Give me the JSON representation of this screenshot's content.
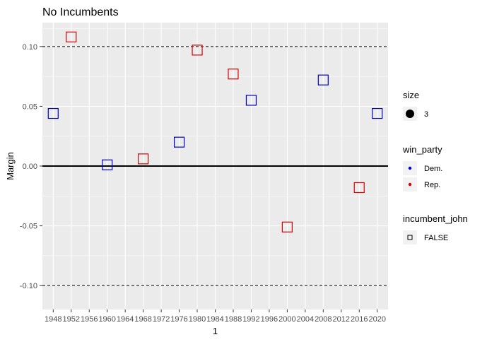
{
  "chart_data": {
    "type": "scatter",
    "title": "No Incumbents",
    "xlabel": "1",
    "ylabel": "Margin",
    "x_categories": [
      "1948",
      "1952",
      "1956",
      "1960",
      "1964",
      "1968",
      "1972",
      "1976",
      "1980",
      "1984",
      "1988",
      "1992",
      "1996",
      "2000",
      "2004",
      "2008",
      "2012",
      "2016",
      "2020"
    ],
    "ylim": [
      -0.12,
      0.12
    ],
    "y_ticks": [
      {
        "value": 0.1,
        "label": "0.10"
      },
      {
        "value": 0.05,
        "label": "0.05"
      },
      {
        "value": 0.0,
        "label": "0.00"
      },
      {
        "value": -0.05,
        "label": "-0.05"
      },
      {
        "value": -0.1,
        "label": "-0.10"
      }
    ],
    "reference_lines": [
      {
        "y": 0.1,
        "style": "dashed"
      },
      {
        "y": 0.0,
        "style": "solid"
      },
      {
        "y": -0.1,
        "style": "dashed"
      }
    ],
    "grid": true,
    "points": [
      {
        "x": "1948",
        "y": 0.044,
        "party": "Dem."
      },
      {
        "x": "1952",
        "y": 0.108,
        "party": "Rep."
      },
      {
        "x": "1960",
        "y": 0.001,
        "party": "Dem."
      },
      {
        "x": "1968",
        "y": 0.006,
        "party": "Rep."
      },
      {
        "x": "1976",
        "y": 0.02,
        "party": "Dem."
      },
      {
        "x": "1980",
        "y": 0.097,
        "party": "Rep."
      },
      {
        "x": "1988",
        "y": 0.077,
        "party": "Rep."
      },
      {
        "x": "1992",
        "y": 0.055,
        "party": "Dem."
      },
      {
        "x": "2000",
        "y": -0.051,
        "party": "Rep."
      },
      {
        "x": "2008",
        "y": 0.072,
        "party": "Dem."
      },
      {
        "x": "2016",
        "y": -0.018,
        "party": "Rep."
      },
      {
        "x": "2020",
        "y": 0.044,
        "party": "Dem."
      }
    ],
    "legend": {
      "placement": "right",
      "groups": [
        {
          "title": "size",
          "entries": [
            {
              "label": "3",
              "symbol": "filled-circle",
              "color": "#000000"
            }
          ]
        },
        {
          "title": "win_party",
          "entries": [
            {
              "label": "Dem.",
              "symbol": "dot",
              "color": "#0000cc"
            },
            {
              "label": "Rep.",
              "symbol": "dot",
              "color": "#dd0000"
            }
          ]
        },
        {
          "title": "incumbent_john",
          "entries": [
            {
              "label": "FALSE",
              "symbol": "open-square",
              "color": "#000000"
            }
          ]
        }
      ]
    },
    "colors": {
      "Dem.": "#0000cc",
      "Rep.": "#dd0000",
      "panel": "#ebebeb",
      "grid": "#ffffff"
    }
  }
}
